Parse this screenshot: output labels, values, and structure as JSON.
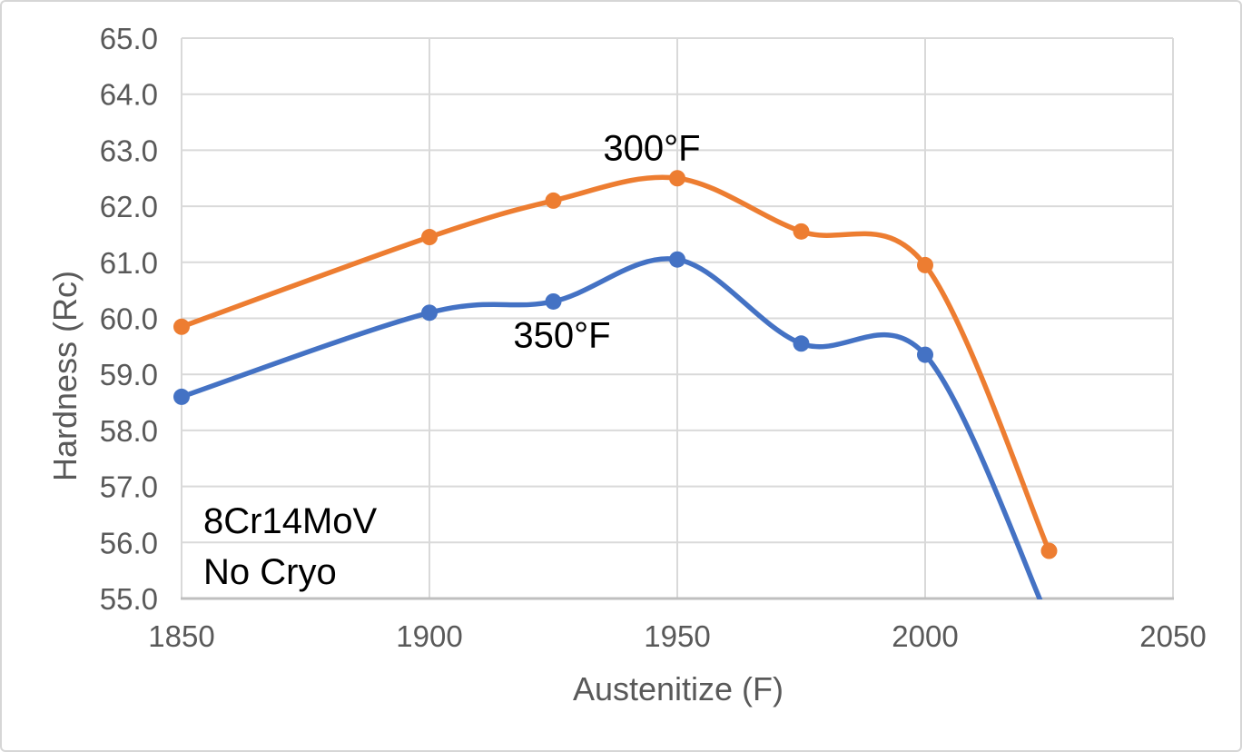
{
  "chart_data": {
    "type": "line",
    "title": "",
    "xlabel": "Austenitize (F)",
    "ylabel": "Hardness (Rc)",
    "xlim": [
      1850,
      2050
    ],
    "ylim": [
      55.0,
      65.0
    ],
    "grid": true,
    "legend_position": "none",
    "x": [
      1850,
      1900,
      1925,
      1950,
      1975,
      2000,
      2025
    ],
    "series": [
      {
        "name": "300°F",
        "color": "#ED7D31",
        "values": [
          59.85,
          61.45,
          62.1,
          62.5,
          61.55,
          60.95,
          55.85
        ]
      },
      {
        "name": "350°F",
        "color": "#4472C4",
        "values": [
          58.6,
          60.1,
          60.3,
          61.05,
          59.55,
          59.35,
          54.6
        ]
      }
    ],
    "xtick_labels": [
      "1850",
      "1900",
      "1950",
      "2000",
      "2050"
    ],
    "ytick_labels": [
      "65.0",
      "64.0",
      "63.0",
      "62.0",
      "61.0",
      "60.0",
      "59.0",
      "58.0",
      "57.0",
      "56.0",
      "55.0"
    ]
  },
  "annotations": {
    "steel_line1": "8Cr14MoV",
    "steel_line2": "No Cryo"
  },
  "colors": {
    "gridline": "#D9D9D9",
    "axis_line": "#BFBFBF",
    "axis_text": "#595959",
    "annotation_text": "#000000",
    "background": "#FFFFFF"
  }
}
